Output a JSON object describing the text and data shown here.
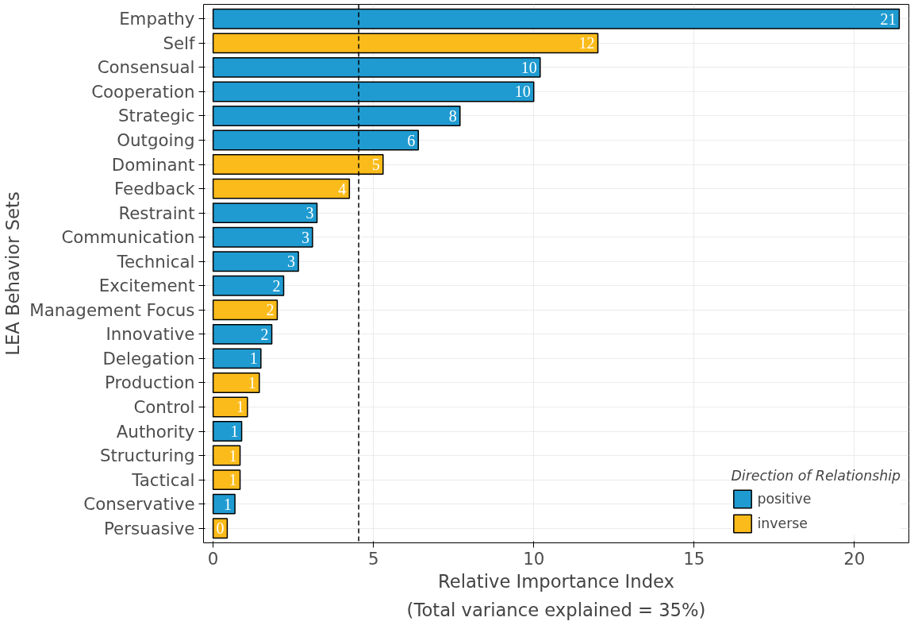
{
  "chart_data": {
    "type": "bar",
    "orientation": "horizontal",
    "xlabel": "Relative Importance Index",
    "ylabel": "LEA Behavior Sets",
    "legend_title": "Direction of Relationship",
    "annotations": [
      "(Total variance explained = 35%)"
    ],
    "categories": [
      "Empathy",
      "Self",
      "Consensual",
      "Cooperation",
      "Strategic",
      "Outgoing",
      "Dominant",
      "Feedback",
      "Restraint",
      "Communication",
      "Technical",
      "Excitement",
      "Management Focus",
      "Innovative",
      "Delegation",
      "Production",
      "Control",
      "Authority",
      "Structuring",
      "Tactical",
      "Conservative",
      "Persuasive"
    ],
    "series": [
      {
        "name": "positive",
        "color": "#1f9bd1",
        "values": [
          21.4,
          null,
          10.2,
          10.0,
          7.7,
          6.4,
          null,
          null,
          3.24,
          3.1,
          2.66,
          2.2,
          null,
          1.83,
          1.49,
          null,
          null,
          0.89,
          null,
          null,
          0.68,
          null
        ],
        "value_labels": [
          "21",
          null,
          "10",
          "10",
          "8",
          "6",
          null,
          null,
          "3",
          "3",
          "3",
          "2",
          null,
          "2",
          "1",
          null,
          null,
          "1",
          null,
          null,
          "1",
          null
        ]
      },
      {
        "name": "inverse",
        "color": "#fbbb1a",
        "values": [
          null,
          12.0,
          null,
          null,
          null,
          null,
          5.3,
          4.25,
          null,
          null,
          null,
          null,
          2.0,
          null,
          null,
          1.44,
          1.07,
          null,
          0.84,
          0.84,
          null,
          0.44
        ],
        "value_labels": [
          null,
          "12",
          null,
          null,
          null,
          null,
          "5",
          "4",
          null,
          null,
          null,
          null,
          "2",
          null,
          null,
          "1",
          "1",
          null,
          "1",
          "1",
          null,
          "0"
        ]
      }
    ],
    "xlim": [
      -0.3,
      21.7
    ],
    "xticks": [
      0,
      5,
      10,
      15,
      20
    ],
    "ref_lines": [
      {
        "axis": "x",
        "value": 4.54,
        "line_style": "dashed",
        "color": "#000000"
      }
    ],
    "grid": true,
    "legend": "bottom right"
  }
}
